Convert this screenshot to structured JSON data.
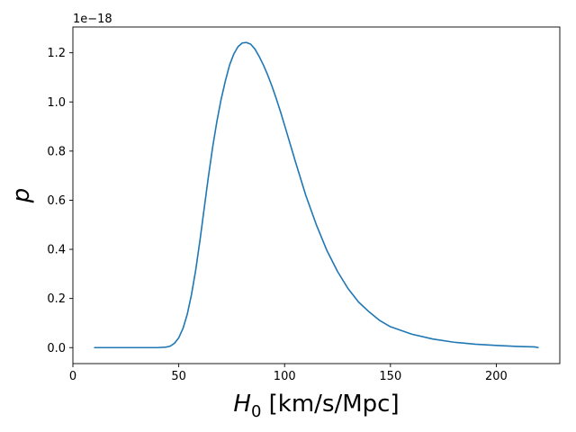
{
  "chart_data": {
    "type": "line",
    "xlabel_symbol": "H",
    "xlabel_subscript": "0",
    "xlabel_unit": " [km/s/Mpc]",
    "ylabel": "p",
    "y_offset_label": "1e−18",
    "xlim": [
      0,
      230
    ],
    "ylim": [
      -0.065,
      1.305
    ],
    "xticks": [
      0,
      50,
      100,
      150,
      200
    ],
    "xtick_labels": [
      "0",
      "50",
      "100",
      "150",
      "200"
    ],
    "yticks": [
      0.0,
      0.2,
      0.4,
      0.6,
      0.8,
      1.0,
      1.2
    ],
    "ytick_labels": [
      "0.0",
      "0.2",
      "0.4",
      "0.6",
      "0.8",
      "1.0",
      "1.2"
    ],
    "grid": false,
    "line_color": "#1f77b4",
    "series": [
      {
        "x": [
          10,
          20,
          30,
          40,
          44,
          46,
          48,
          50,
          52,
          54,
          56,
          58,
          60,
          62,
          64,
          66,
          68,
          70,
          72,
          74,
          76,
          78,
          80,
          82,
          84,
          86,
          88,
          90,
          92,
          94,
          96,
          98,
          100,
          105,
          110,
          115,
          120,
          125,
          130,
          135,
          140,
          145,
          150,
          160,
          170,
          180,
          190,
          200,
          210,
          218,
          220
        ],
        "y": [
          0.0,
          0.0,
          0.0,
          0.0,
          0.002,
          0.006,
          0.018,
          0.04,
          0.078,
          0.135,
          0.215,
          0.315,
          0.435,
          0.565,
          0.695,
          0.815,
          0.92,
          1.01,
          1.085,
          1.15,
          1.195,
          1.225,
          1.24,
          1.242,
          1.235,
          1.215,
          1.185,
          1.15,
          1.11,
          1.065,
          1.015,
          0.962,
          0.905,
          0.76,
          0.62,
          0.5,
          0.395,
          0.31,
          0.24,
          0.185,
          0.145,
          0.11,
          0.085,
          0.055,
          0.035,
          0.022,
          0.014,
          0.009,
          0.005,
          0.003,
          0.0
        ]
      }
    ]
  }
}
